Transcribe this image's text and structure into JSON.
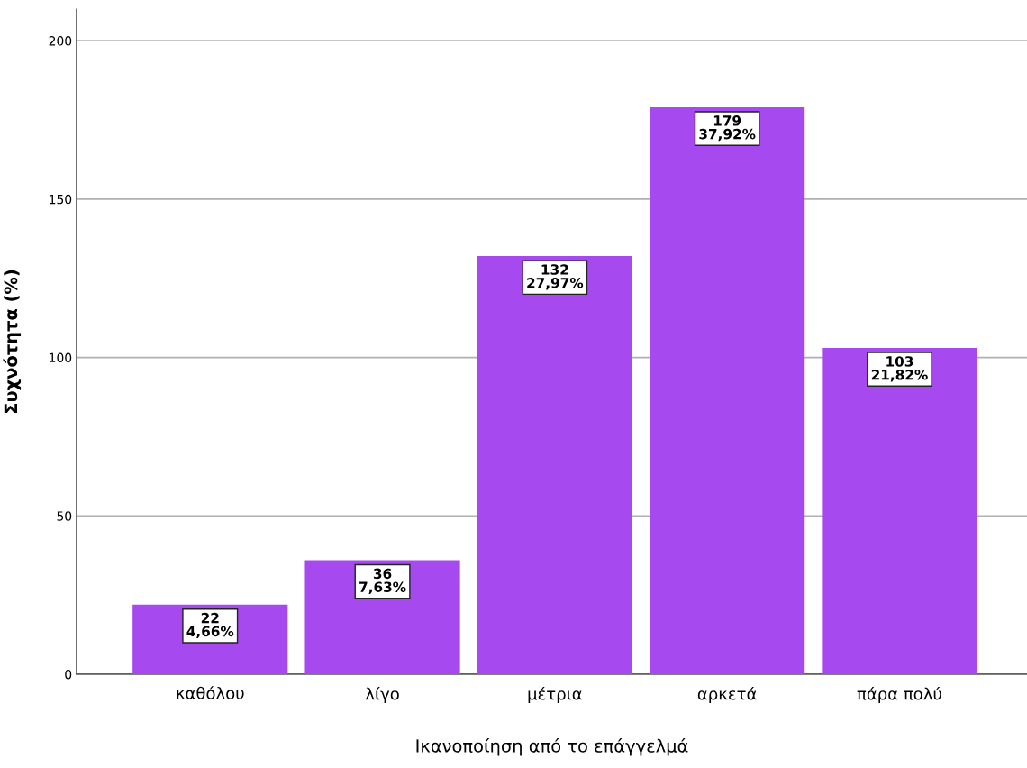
{
  "chart_data": {
    "type": "bar",
    "xlabel": "Ικανοποίηση από το επάγγελμά",
    "ylabel": "Συχνότητα (%)",
    "categories": [
      "καθόλου",
      "λίγο",
      "μέτρια",
      "αρκετά",
      "πάρα πολύ"
    ],
    "values": [
      22,
      36,
      132,
      179,
      103
    ],
    "value_labels": [
      "22\n4,66%",
      "36\n7,63%",
      "132\n27,97%",
      "179\n37,92%",
      "103\n21,82%"
    ],
    "color": "#a64af0",
    "ylim": [
      0,
      210
    ],
    "yticks": [
      0,
      50,
      100,
      150,
      200
    ],
    "grid": "y"
  }
}
